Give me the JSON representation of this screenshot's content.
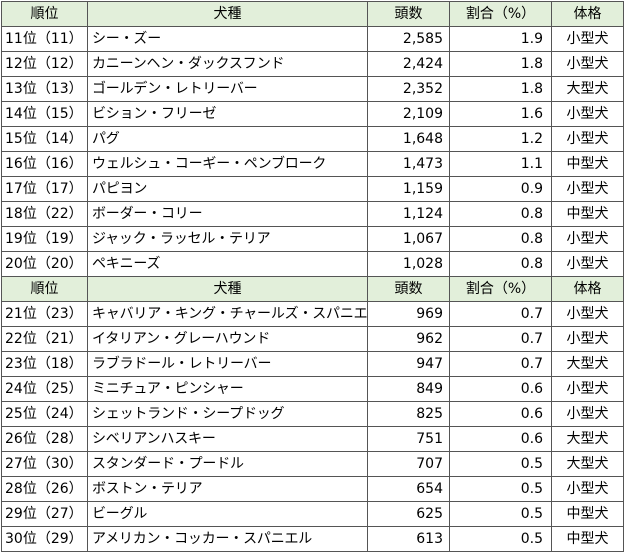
{
  "headers": {
    "rank": "順位",
    "breed": "犬種",
    "count": "頭数",
    "ratio": "割合（%）",
    "size": "体格"
  },
  "rows": [
    {
      "rank": "11位（11）",
      "breed": "シー・ズー",
      "count": "2,585",
      "ratio": "1.9",
      "size": "小型犬"
    },
    {
      "rank": "12位（12）",
      "breed": "カニーンヘン・ダックスフンド",
      "count": "2,424",
      "ratio": "1.8",
      "size": "小型犬"
    },
    {
      "rank": "13位（13）",
      "breed": "ゴールデン・レトリーバー",
      "count": "2,352",
      "ratio": "1.8",
      "size": "大型犬"
    },
    {
      "rank": "14位（15）",
      "breed": "ビション・フリーゼ",
      "count": "2,109",
      "ratio": "1.6",
      "size": "小型犬"
    },
    {
      "rank": "15位（14）",
      "breed": "パグ",
      "count": "1,648",
      "ratio": "1.2",
      "size": "小型犬"
    },
    {
      "rank": "16位（16）",
      "breed": "ウェルシュ・コーギー・ペンブローク",
      "count": "1,473",
      "ratio": "1.1",
      "size": "中型犬"
    },
    {
      "rank": "17位（17）",
      "breed": "パピヨン",
      "count": "1,159",
      "ratio": "0.9",
      "size": "小型犬"
    },
    {
      "rank": "18位（22）",
      "breed": "ボーダー・コリー",
      "count": "1,124",
      "ratio": "0.8",
      "size": "中型犬"
    },
    {
      "rank": "19位（19）",
      "breed": "ジャック・ラッセル・テリア",
      "count": "1,067",
      "ratio": "0.8",
      "size": "小型犬"
    },
    {
      "rank": "20位（20）",
      "breed": "ペキニーズ",
      "count": "1,028",
      "ratio": "0.8",
      "size": "小型犬"
    },
    {
      "rank": "21位（23）",
      "breed": "キャバリア・キング・チャールズ・スパニエル",
      "count": "969",
      "ratio": "0.7",
      "size": "小型犬"
    },
    {
      "rank": "22位（21）",
      "breed": "イタリアン・グレーハウンド",
      "count": "962",
      "ratio": "0.7",
      "size": "小型犬"
    },
    {
      "rank": "23位（18）",
      "breed": "ラブラドール・レトリーバー",
      "count": "947",
      "ratio": "0.7",
      "size": "大型犬"
    },
    {
      "rank": "24位（25）",
      "breed": "ミニチュア・ピンシャー",
      "count": "849",
      "ratio": "0.6",
      "size": "小型犬"
    },
    {
      "rank": "25位（24）",
      "breed": "シェットランド・シープドッグ",
      "count": "825",
      "ratio": "0.6",
      "size": "小型犬"
    },
    {
      "rank": "26位（28）",
      "breed": "シベリアンハスキー",
      "count": "751",
      "ratio": "0.6",
      "size": "大型犬"
    },
    {
      "rank": "27位（30）",
      "breed": "スタンダード・プードル",
      "count": "707",
      "ratio": "0.5",
      "size": "大型犬"
    },
    {
      "rank": "28位（26）",
      "breed": "ボストン・テリア",
      "count": "654",
      "ratio": "0.5",
      "size": "小型犬"
    },
    {
      "rank": "29位（27）",
      "breed": "ビーグル",
      "count": "625",
      "ratio": "0.5",
      "size": "中型犬"
    },
    {
      "rank": "30位（29）",
      "breed": "アメリカン・コッカー・スパニエル",
      "count": "613",
      "ratio": "0.5",
      "size": "中型犬"
    }
  ]
}
